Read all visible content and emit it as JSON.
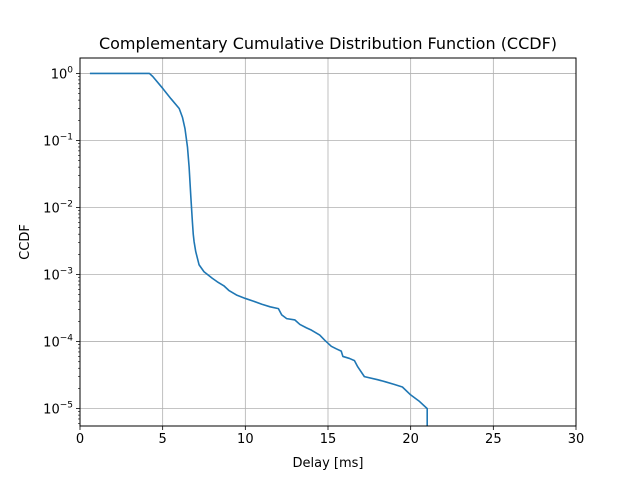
{
  "chart_data": {
    "type": "line",
    "title": "Complementary Cumulative Distribution Function (CCDF)",
    "xlabel": "Delay [ms]",
    "ylabel": "CCDF",
    "xlim": [
      0,
      30
    ],
    "ylim": [
      5.5e-06,
      1.7
    ],
    "yscale": "log",
    "grid": true,
    "line_color": "#1f77b4",
    "x_ticks": [
      0,
      5,
      10,
      15,
      20,
      25,
      30
    ],
    "x_tick_labels": [
      "0",
      "5",
      "10",
      "15",
      "20",
      "25",
      "30"
    ],
    "y_ticks": [
      {
        "value": 1,
        "base": "10",
        "exp": "0"
      },
      {
        "value": 0.1,
        "base": "10",
        "exp": "−1"
      },
      {
        "value": 0.01,
        "base": "10",
        "exp": "−2"
      },
      {
        "value": 0.001,
        "base": "10",
        "exp": "−3"
      },
      {
        "value": 0.0001,
        "base": "10",
        "exp": "−4"
      },
      {
        "value": 1e-05,
        "base": "10",
        "exp": "−5"
      }
    ],
    "series": [
      {
        "x": [
          0.6,
          4.2,
          4.4,
          5.0,
          5.5,
          6.0,
          6.2,
          6.35,
          6.5,
          6.6,
          6.7,
          6.8,
          6.85,
          6.9,
          7.0,
          7.2,
          7.5,
          8.0,
          8.3,
          8.7,
          9.0,
          9.5,
          10.0,
          10.5,
          11.0,
          11.5,
          12.0,
          12.2,
          12.5,
          13.0,
          13.3,
          13.7,
          14.0,
          14.5,
          14.8,
          15.2,
          15.5,
          15.8,
          15.9,
          16.3,
          16.6,
          16.8,
          17.2,
          18.0,
          18.5,
          19.0,
          19.5,
          20.0,
          20.5,
          21.0,
          21.0
        ],
        "y": [
          1.0,
          1.0,
          0.9,
          0.6,
          0.42,
          0.3,
          0.22,
          0.15,
          0.08,
          0.04,
          0.015,
          0.006,
          0.004,
          0.0031,
          0.0022,
          0.0014,
          0.0011,
          0.00088,
          0.00078,
          0.00068,
          0.00058,
          0.00049,
          0.00044,
          0.0004,
          0.00036,
          0.00033,
          0.00031,
          0.00025,
          0.00022,
          0.00021,
          0.00018,
          0.00016,
          0.000148,
          0.000125,
          0.000105,
          8.5e-05,
          7.8e-05,
          7.2e-05,
          6e-05,
          5.6e-05,
          5.2e-05,
          4.2e-05,
          3e-05,
          2.7e-05,
          2.5e-05,
          2.3e-05,
          2.1e-05,
          1.6e-05,
          1.3e-05,
          1e-05,
          5.5e-06
        ]
      }
    ]
  }
}
